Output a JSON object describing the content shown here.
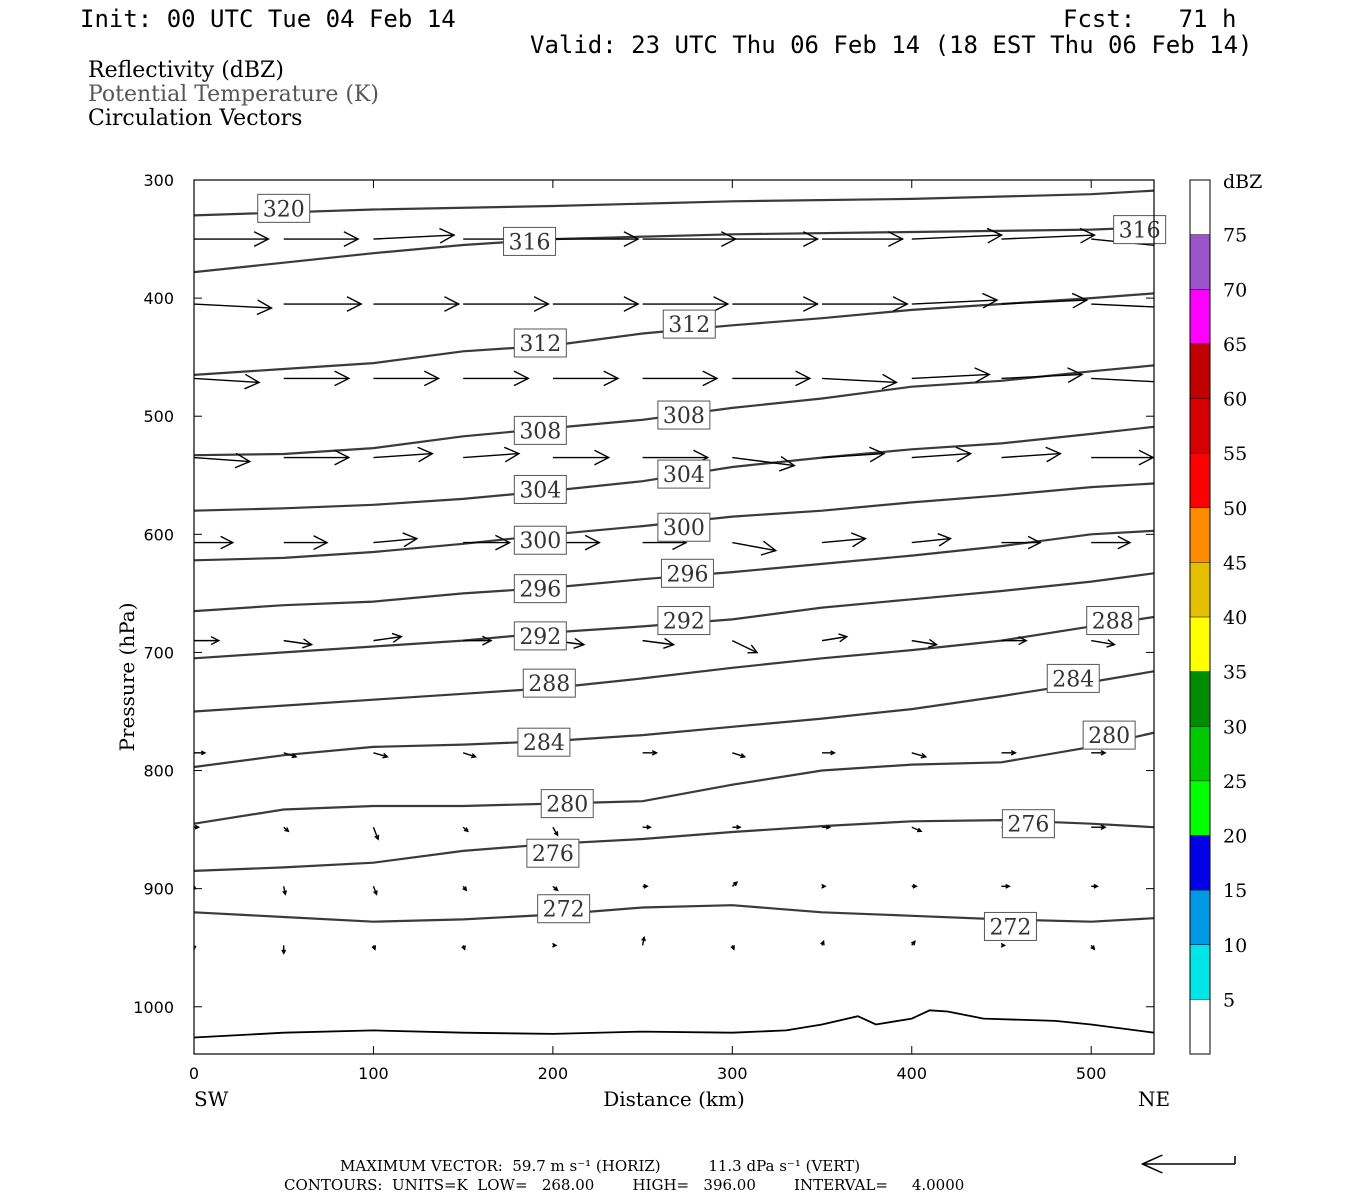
{
  "header": {
    "init": "Init: 00 UTC Tue 04 Feb 14",
    "fcst": "Fcst:   71 h",
    "valid": "Valid: 23 UTC Thu 06 Feb 14 (18 EST Thu 06 Feb 14)"
  },
  "legend": {
    "reflectivity": "Reflectivity (dBZ)",
    "theta": "Potential Temperature (K)",
    "vectors": "Circulation Vectors"
  },
  "footer": {
    "max_vector": "MAXIMUM VECTOR:  59.7 m s⁻¹ (HORIZ)          11.3 dPa s⁻¹ (VERT)",
    "contours": "CONTOURS:  UNITS=K  LOW=   268.00        HIGH=   396.00        INTERVAL=     4.0000"
  },
  "colorbar": {
    "title": "dBZ",
    "labels": [
      "5",
      "10",
      "15",
      "20",
      "25",
      "30",
      "35",
      "40",
      "45",
      "50",
      "55",
      "60",
      "65",
      "70",
      "75"
    ],
    "colors": [
      "#ffffff",
      "#00e5e5",
      "#0099e6",
      "#0000e6",
      "#00ff00",
      "#00c800",
      "#008c00",
      "#ffff00",
      "#e6c000",
      "#ff8c00",
      "#ff0000",
      "#d60000",
      "#c00000",
      "#ff00ff",
      "#9955c9",
      "#ffffff"
    ]
  },
  "chart_data": {
    "type": "line",
    "xlabel": "Distance (km)",
    "ylabel": "Pressure (hPa)",
    "x_left_label": "SW",
    "x_right_label": "NE",
    "xlim": [
      0,
      535
    ],
    "ylim": [
      1040,
      300
    ],
    "xticks": [
      0,
      100,
      200,
      300,
      400,
      500
    ],
    "yticks": [
      300,
      400,
      500,
      600,
      700,
      800,
      900,
      1000
    ],
    "contour_color": "#3a3a3a",
    "contours": [
      {
        "level": "320",
        "points": [
          [
            0,
            330
          ],
          [
            100,
            325
          ],
          [
            200,
            322
          ],
          [
            300,
            318
          ],
          [
            400,
            316
          ],
          [
            500,
            312
          ],
          [
            535,
            309
          ]
        ],
        "labels": [
          {
            "x": 50,
            "p": 324
          }
        ]
      },
      {
        "level": "316",
        "points": [
          [
            0,
            378
          ],
          [
            50,
            370
          ],
          [
            100,
            362
          ],
          [
            150,
            355
          ],
          [
            200,
            350
          ],
          [
            300,
            346
          ],
          [
            400,
            344
          ],
          [
            500,
            342
          ],
          [
            535,
            340
          ]
        ],
        "labels": [
          {
            "x": 187,
            "p": 352
          },
          {
            "x": 527,
            "p": 342
          }
        ]
      },
      {
        "level": "312",
        "points": [
          [
            0,
            465
          ],
          [
            50,
            460
          ],
          [
            100,
            455
          ],
          [
            150,
            445
          ],
          [
            200,
            440
          ],
          [
            250,
            430
          ],
          [
            300,
            423
          ],
          [
            350,
            417
          ],
          [
            400,
            410
          ],
          [
            450,
            405
          ],
          [
            500,
            400
          ],
          [
            535,
            396
          ]
        ],
        "labels": [
          {
            "x": 193,
            "p": 438
          },
          {
            "x": 276,
            "p": 422
          }
        ]
      },
      {
        "level": "308",
        "points": [
          [
            0,
            533
          ],
          [
            50,
            532
          ],
          [
            100,
            527
          ],
          [
            150,
            517
          ],
          [
            200,
            510
          ],
          [
            250,
            503
          ],
          [
            300,
            493
          ],
          [
            350,
            485
          ],
          [
            400,
            475
          ],
          [
            450,
            470
          ],
          [
            500,
            462
          ],
          [
            535,
            457
          ]
        ],
        "labels": [
          {
            "x": 193,
            "p": 512
          },
          {
            "x": 273,
            "p": 499
          }
        ]
      },
      {
        "level": "304",
        "points": [
          [
            0,
            580
          ],
          [
            50,
            578
          ],
          [
            100,
            575
          ],
          [
            150,
            570
          ],
          [
            200,
            563
          ],
          [
            250,
            555
          ],
          [
            300,
            543
          ],
          [
            350,
            535
          ],
          [
            400,
            528
          ],
          [
            450,
            523
          ],
          [
            500,
            515
          ],
          [
            535,
            509
          ]
        ],
        "labels": [
          {
            "x": 193,
            "p": 562
          },
          {
            "x": 273,
            "p": 549
          }
        ]
      },
      {
        "level": "300",
        "points": [
          [
            0,
            622
          ],
          [
            50,
            620
          ],
          [
            100,
            615
          ],
          [
            150,
            608
          ],
          [
            200,
            600
          ],
          [
            250,
            593
          ],
          [
            300,
            585
          ],
          [
            350,
            580
          ],
          [
            400,
            573
          ],
          [
            450,
            567
          ],
          [
            500,
            560
          ],
          [
            535,
            557
          ]
        ],
        "labels": [
          {
            "x": 193,
            "p": 605
          },
          {
            "x": 273,
            "p": 594
          }
        ]
      },
      {
        "level": "296",
        "points": [
          [
            0,
            665
          ],
          [
            50,
            660
          ],
          [
            100,
            657
          ],
          [
            150,
            650
          ],
          [
            200,
            645
          ],
          [
            250,
            638
          ],
          [
            300,
            632
          ],
          [
            350,
            625
          ],
          [
            400,
            618
          ],
          [
            450,
            610
          ],
          [
            500,
            600
          ],
          [
            535,
            597
          ]
        ],
        "labels": [
          {
            "x": 193,
            "p": 646
          },
          {
            "x": 275,
            "p": 633
          }
        ]
      },
      {
        "level": "292",
        "points": [
          [
            0,
            705
          ],
          [
            50,
            700
          ],
          [
            100,
            695
          ],
          [
            150,
            690
          ],
          [
            200,
            683
          ],
          [
            250,
            678
          ],
          [
            300,
            672
          ],
          [
            350,
            662
          ],
          [
            400,
            655
          ],
          [
            450,
            648
          ],
          [
            500,
            640
          ],
          [
            535,
            633
          ]
        ],
        "labels": [
          {
            "x": 193,
            "p": 686
          },
          {
            "x": 273,
            "p": 673
          }
        ]
      },
      {
        "level": "288",
        "points": [
          [
            0,
            750
          ],
          [
            50,
            745
          ],
          [
            100,
            740
          ],
          [
            150,
            735
          ],
          [
            200,
            730
          ],
          [
            250,
            722
          ],
          [
            300,
            713
          ],
          [
            350,
            705
          ],
          [
            400,
            698
          ],
          [
            450,
            690
          ],
          [
            500,
            678
          ],
          [
            535,
            670
          ]
        ],
        "labels": [
          {
            "x": 198,
            "p": 726
          },
          {
            "x": 512,
            "p": 673
          }
        ]
      },
      {
        "level": "284",
        "points": [
          [
            0,
            797
          ],
          [
            50,
            787
          ],
          [
            100,
            780
          ],
          [
            150,
            778
          ],
          [
            200,
            775
          ],
          [
            250,
            770
          ],
          [
            300,
            763
          ],
          [
            350,
            756
          ],
          [
            400,
            748
          ],
          [
            450,
            737
          ],
          [
            500,
            725
          ],
          [
            535,
            716
          ]
        ],
        "labels": [
          {
            "x": 195,
            "p": 776
          },
          {
            "x": 490,
            "p": 722
          }
        ]
      },
      {
        "level": "280",
        "points": [
          [
            0,
            845
          ],
          [
            50,
            833
          ],
          [
            100,
            830
          ],
          [
            150,
            830
          ],
          [
            200,
            828
          ],
          [
            250,
            826
          ],
          [
            300,
            812
          ],
          [
            350,
            800
          ],
          [
            400,
            795
          ],
          [
            450,
            793
          ],
          [
            500,
            780
          ],
          [
            535,
            768
          ]
        ],
        "labels": [
          {
            "x": 208,
            "p": 828
          },
          {
            "x": 510,
            "p": 770
          }
        ]
      },
      {
        "level": "276",
        "points": [
          [
            0,
            885
          ],
          [
            50,
            882
          ],
          [
            100,
            878
          ],
          [
            150,
            868
          ],
          [
            200,
            862
          ],
          [
            250,
            858
          ],
          [
            300,
            852
          ],
          [
            350,
            847
          ],
          [
            400,
            843
          ],
          [
            450,
            842
          ],
          [
            500,
            845
          ],
          [
            535,
            848
          ]
        ],
        "labels": [
          {
            "x": 200,
            "p": 870
          },
          {
            "x": 465,
            "p": 845
          }
        ]
      },
      {
        "level": "272",
        "points": [
          [
            0,
            920
          ],
          [
            50,
            924
          ],
          [
            100,
            928
          ],
          [
            150,
            926
          ],
          [
            200,
            922
          ],
          [
            250,
            916
          ],
          [
            300,
            914
          ],
          [
            350,
            920
          ],
          [
            400,
            923
          ],
          [
            450,
            926
          ],
          [
            500,
            928
          ],
          [
            535,
            925
          ]
        ],
        "labels": [
          {
            "x": 206,
            "p": 917
          },
          {
            "x": 455,
            "p": 932
          }
        ]
      }
    ],
    "terrain": [
      [
        0,
        1026
      ],
      [
        50,
        1022
      ],
      [
        100,
        1020
      ],
      [
        150,
        1022
      ],
      [
        200,
        1023
      ],
      [
        250,
        1021
      ],
      [
        300,
        1022
      ],
      [
        330,
        1020
      ],
      [
        350,
        1015
      ],
      [
        370,
        1008
      ],
      [
        380,
        1015
      ],
      [
        400,
        1010
      ],
      [
        410,
        1003
      ],
      [
        420,
        1004
      ],
      [
        440,
        1010
      ],
      [
        480,
        1012
      ],
      [
        500,
        1015
      ],
      [
        535,
        1022
      ]
    ],
    "vector_rows": [
      {
        "p": 350,
        "x": [
          0,
          50,
          100,
          150,
          200,
          250,
          300,
          350,
          400,
          450,
          500
        ],
        "u": [
          48,
          48,
          52,
          60,
          55,
          60,
          55,
          52,
          58,
          60,
          52
        ],
        "w": [
          0,
          0,
          1,
          0,
          0,
          0,
          0,
          0,
          1,
          1,
          -2
        ]
      },
      {
        "p": 405,
        "x": [
          0,
          50,
          100,
          150,
          200,
          250,
          300,
          350,
          400,
          450,
          500
        ],
        "u": [
          50,
          50,
          55,
          55,
          55,
          55,
          55,
          55,
          55,
          55,
          55
        ],
        "w": [
          -1,
          0,
          0,
          0,
          0,
          0,
          0,
          0,
          1,
          1,
          -1
        ]
      },
      {
        "p": 468,
        "x": [
          0,
          50,
          100,
          150,
          200,
          250,
          300,
          350,
          400,
          450,
          500
        ],
        "u": [
          42,
          42,
          42,
          42,
          42,
          48,
          50,
          48,
          50,
          52,
          50
        ],
        "w": [
          -1,
          0,
          0,
          0,
          0,
          0,
          0,
          -1,
          1,
          1,
          -1
        ]
      },
      {
        "p": 535,
        "x": [
          0,
          50,
          100,
          150,
          200,
          250,
          300,
          350,
          400,
          450,
          500
        ],
        "u": [
          36,
          42,
          38,
          36,
          36,
          42,
          40,
          40,
          38,
          38,
          40
        ],
        "w": [
          -1,
          0,
          1,
          1,
          0,
          0,
          -2,
          1,
          1,
          1,
          0
        ]
      },
      {
        "p": 607,
        "x": [
          0,
          50,
          100,
          150,
          200,
          250,
          300,
          350,
          400,
          450,
          500
        ],
        "u": [
          25,
          28,
          28,
          30,
          30,
          28,
          28,
          28,
          25,
          25,
          25
        ],
        "w": [
          0,
          0,
          1,
          0,
          0,
          0,
          -2,
          1,
          1,
          0,
          0
        ]
      },
      {
        "p": 690,
        "x": [
          0,
          50,
          100,
          150,
          200,
          250,
          300,
          350,
          400,
          450,
          500
        ],
        "u": [
          16,
          18,
          18,
          18,
          20,
          20,
          16,
          16,
          16,
          16,
          15
        ],
        "w": [
          0,
          -1,
          1,
          0,
          -1,
          -1,
          -3,
          1,
          -1,
          0,
          -1
        ]
      },
      {
        "p": 785,
        "x": [
          0,
          50,
          100,
          150,
          200,
          250,
          300,
          350,
          400,
          450,
          500
        ],
        "u": [
          7,
          8,
          9,
          8,
          10,
          9,
          8,
          8,
          9,
          9,
          9
        ],
        "w": [
          0,
          -1,
          -1,
          -1,
          0,
          0,
          -1,
          0,
          -1,
          0,
          0
        ]
      },
      {
        "p": 848,
        "x": [
          0,
          50,
          100,
          150,
          200,
          250,
          300,
          350,
          400,
          450,
          500
        ],
        "u": [
          3,
          3,
          3,
          3,
          3,
          5,
          5,
          5,
          6,
          6,
          9
        ],
        "w": [
          0,
          -1,
          -3,
          -1,
          -2,
          0,
          0,
          0,
          -1,
          0,
          0
        ]
      },
      {
        "p": 898,
        "x": [
          0,
          50,
          100,
          150,
          200,
          250,
          300,
          350,
          400,
          450,
          500
        ],
        "u": [
          1,
          1,
          2,
          2,
          3,
          3,
          3,
          2,
          3,
          5,
          4
        ],
        "w": [
          0,
          -2,
          -2,
          -1,
          -1,
          0,
          1,
          0,
          0,
          0,
          0
        ]
      },
      {
        "p": 948,
        "x": [
          0,
          50,
          100,
          150,
          200,
          250,
          300,
          350,
          400,
          450,
          500
        ],
        "u": [
          0,
          0,
          1,
          1,
          2,
          1,
          1,
          1,
          2,
          2,
          2
        ],
        "w": [
          -1,
          -2,
          -1,
          -1,
          0,
          2,
          -1,
          1,
          1,
          0,
          -1
        ]
      }
    ],
    "ref_vector": {
      "u": 59.7
    }
  }
}
